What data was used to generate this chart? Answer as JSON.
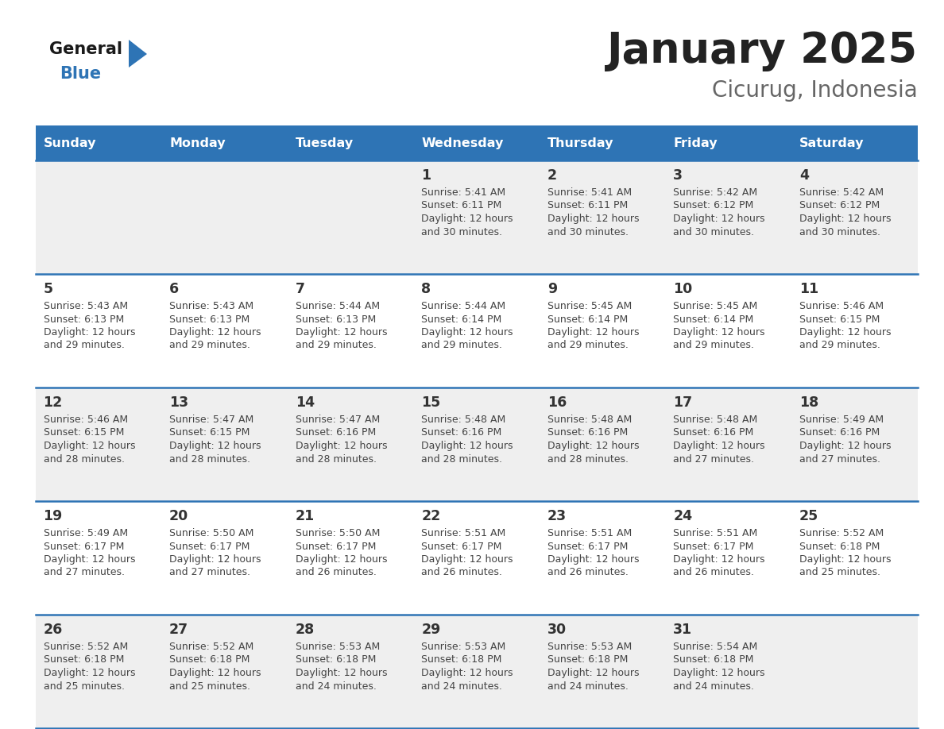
{
  "title": "January 2025",
  "subtitle": "Cicurug, Indonesia",
  "days_of_week": [
    "Sunday",
    "Monday",
    "Tuesday",
    "Wednesday",
    "Thursday",
    "Friday",
    "Saturday"
  ],
  "header_bg": "#2E74B5",
  "header_text_color": "#FFFFFF",
  "cell_bg_odd": "#EFEFEF",
  "cell_bg_even": "#FFFFFF",
  "cell_text_color": "#444444",
  "day_num_color": "#333333",
  "separator_color": "#2E74B5",
  "title_color": "#222222",
  "subtitle_color": "#666666",
  "logo_general_color": "#1a1a1a",
  "logo_blue_color": "#2E74B5",
  "calendar_data": [
    [
      null,
      null,
      null,
      {
        "day": 1,
        "sunrise": "5:41 AM",
        "sunset": "6:11 PM",
        "daylight": "12 hours and 30 minutes."
      },
      {
        "day": 2,
        "sunrise": "5:41 AM",
        "sunset": "6:11 PM",
        "daylight": "12 hours and 30 minutes."
      },
      {
        "day": 3,
        "sunrise": "5:42 AM",
        "sunset": "6:12 PM",
        "daylight": "12 hours and 30 minutes."
      },
      {
        "day": 4,
        "sunrise": "5:42 AM",
        "sunset": "6:12 PM",
        "daylight": "12 hours and 30 minutes."
      }
    ],
    [
      {
        "day": 5,
        "sunrise": "5:43 AM",
        "sunset": "6:13 PM",
        "daylight": "12 hours and 29 minutes."
      },
      {
        "day": 6,
        "sunrise": "5:43 AM",
        "sunset": "6:13 PM",
        "daylight": "12 hours and 29 minutes."
      },
      {
        "day": 7,
        "sunrise": "5:44 AM",
        "sunset": "6:13 PM",
        "daylight": "12 hours and 29 minutes."
      },
      {
        "day": 8,
        "sunrise": "5:44 AM",
        "sunset": "6:14 PM",
        "daylight": "12 hours and 29 minutes."
      },
      {
        "day": 9,
        "sunrise": "5:45 AM",
        "sunset": "6:14 PM",
        "daylight": "12 hours and 29 minutes."
      },
      {
        "day": 10,
        "sunrise": "5:45 AM",
        "sunset": "6:14 PM",
        "daylight": "12 hours and 29 minutes."
      },
      {
        "day": 11,
        "sunrise": "5:46 AM",
        "sunset": "6:15 PM",
        "daylight": "12 hours and 29 minutes."
      }
    ],
    [
      {
        "day": 12,
        "sunrise": "5:46 AM",
        "sunset": "6:15 PM",
        "daylight": "12 hours and 28 minutes."
      },
      {
        "day": 13,
        "sunrise": "5:47 AM",
        "sunset": "6:15 PM",
        "daylight": "12 hours and 28 minutes."
      },
      {
        "day": 14,
        "sunrise": "5:47 AM",
        "sunset": "6:16 PM",
        "daylight": "12 hours and 28 minutes."
      },
      {
        "day": 15,
        "sunrise": "5:48 AM",
        "sunset": "6:16 PM",
        "daylight": "12 hours and 28 minutes."
      },
      {
        "day": 16,
        "sunrise": "5:48 AM",
        "sunset": "6:16 PM",
        "daylight": "12 hours and 28 minutes."
      },
      {
        "day": 17,
        "sunrise": "5:48 AM",
        "sunset": "6:16 PM",
        "daylight": "12 hours and 27 minutes."
      },
      {
        "day": 18,
        "sunrise": "5:49 AM",
        "sunset": "6:16 PM",
        "daylight": "12 hours and 27 minutes."
      }
    ],
    [
      {
        "day": 19,
        "sunrise": "5:49 AM",
        "sunset": "6:17 PM",
        "daylight": "12 hours and 27 minutes."
      },
      {
        "day": 20,
        "sunrise": "5:50 AM",
        "sunset": "6:17 PM",
        "daylight": "12 hours and 27 minutes."
      },
      {
        "day": 21,
        "sunrise": "5:50 AM",
        "sunset": "6:17 PM",
        "daylight": "12 hours and 26 minutes."
      },
      {
        "day": 22,
        "sunrise": "5:51 AM",
        "sunset": "6:17 PM",
        "daylight": "12 hours and 26 minutes."
      },
      {
        "day": 23,
        "sunrise": "5:51 AM",
        "sunset": "6:17 PM",
        "daylight": "12 hours and 26 minutes."
      },
      {
        "day": 24,
        "sunrise": "5:51 AM",
        "sunset": "6:17 PM",
        "daylight": "12 hours and 26 minutes."
      },
      {
        "day": 25,
        "sunrise": "5:52 AM",
        "sunset": "6:18 PM",
        "daylight": "12 hours and 25 minutes."
      }
    ],
    [
      {
        "day": 26,
        "sunrise": "5:52 AM",
        "sunset": "6:18 PM",
        "daylight": "12 hours and 25 minutes."
      },
      {
        "day": 27,
        "sunrise": "5:52 AM",
        "sunset": "6:18 PM",
        "daylight": "12 hours and 25 minutes."
      },
      {
        "day": 28,
        "sunrise": "5:53 AM",
        "sunset": "6:18 PM",
        "daylight": "12 hours and 24 minutes."
      },
      {
        "day": 29,
        "sunrise": "5:53 AM",
        "sunset": "6:18 PM",
        "daylight": "12 hours and 24 minutes."
      },
      {
        "day": 30,
        "sunrise": "5:53 AM",
        "sunset": "6:18 PM",
        "daylight": "12 hours and 24 minutes."
      },
      {
        "day": 31,
        "sunrise": "5:54 AM",
        "sunset": "6:18 PM",
        "daylight": "12 hours and 24 minutes."
      },
      null
    ]
  ]
}
